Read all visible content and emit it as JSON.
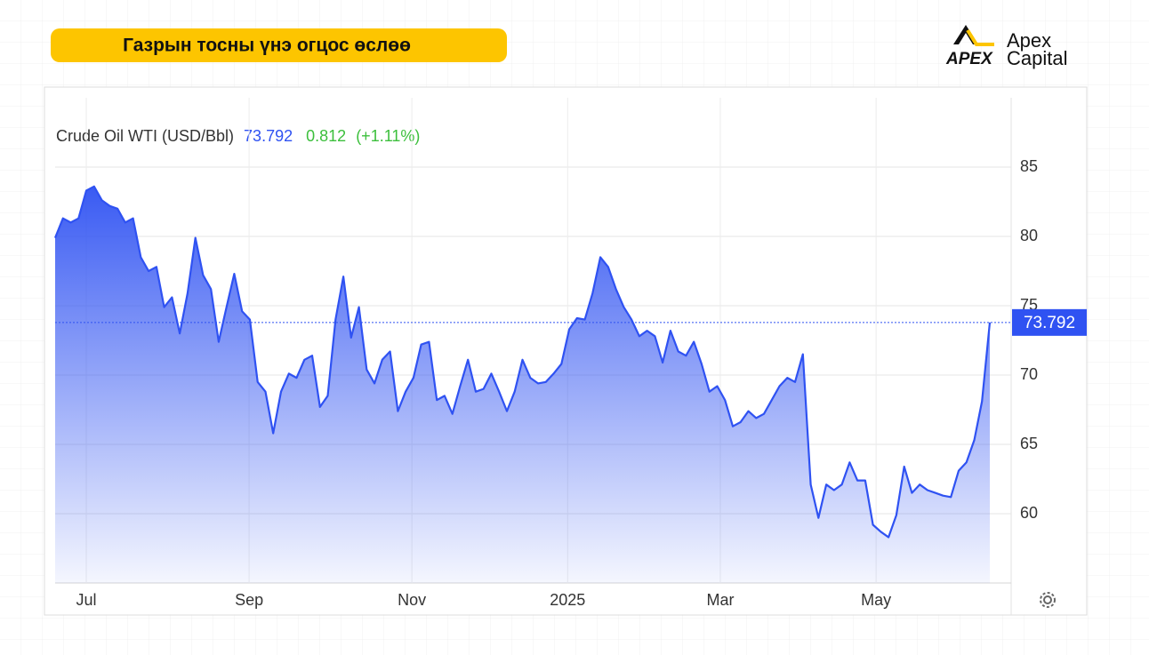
{
  "header": {
    "title": "Газрын тосны үнэ огцос өслөө",
    "logo_mark": "APEX",
    "logo_line1": "Apex",
    "logo_line2": "Capital"
  },
  "chart_data": {
    "type": "area",
    "series_name": "Crude Oil WTI (USD/Bbl)",
    "change": 0.812,
    "change_percent": "(+1.11%)",
    "color": "#2f52f2",
    "change_color": "#3cbf3c",
    "grid": true,
    "values": [
      79.9,
      81.3,
      81.0,
      81.3,
      83.3,
      83.6,
      82.6,
      82.2,
      82.0,
      81.0,
      81.3,
      78.5,
      77.5,
      77.8,
      74.9,
      75.6,
      73.0,
      75.9,
      79.9,
      77.2,
      76.2,
      72.4,
      74.9,
      77.3,
      74.6,
      74.0,
      69.5,
      68.8,
      65.8,
      68.8,
      70.1,
      69.8,
      71.1,
      71.4,
      67.7,
      68.5,
      74.0,
      77.1,
      72.7,
      74.9,
      70.4,
      69.4,
      71.1,
      71.7,
      67.4,
      68.8,
      69.8,
      72.2,
      72.4,
      68.2,
      68.5,
      67.2,
      69.2,
      71.1,
      68.8,
      69.0,
      70.1,
      68.8,
      67.4,
      68.8,
      71.1,
      69.8,
      69.4,
      69.5,
      70.1,
      70.8,
      73.3,
      74.1,
      74.0,
      75.9,
      78.5,
      77.8,
      76.2,
      74.9,
      74.0,
      72.8,
      73.2,
      72.8,
      70.9,
      73.2,
      71.7,
      71.4,
      72.4,
      70.8,
      68.8,
      69.2,
      68.2,
      66.3,
      66.6,
      67.4,
      66.9,
      67.2,
      68.2,
      69.2,
      69.8,
      69.5,
      71.5,
      62.1,
      59.7,
      62.1,
      61.7,
      62.1,
      63.7,
      62.4,
      62.4,
      59.2,
      58.7,
      58.3,
      59.9,
      63.4,
      61.5,
      62.1,
      61.7,
      61.5,
      61.3,
      61.2,
      63.1,
      63.7,
      65.3,
      68.1,
      73.792
    ],
    "xlim": [
      0,
      120
    ],
    "xticks": [
      {
        "value": 4,
        "label": "Jul"
      },
      {
        "value": 24.9,
        "label": "Sep"
      },
      {
        "value": 45.8,
        "label": "Nov"
      },
      {
        "value": 65.8,
        "label": "2025"
      },
      {
        "value": 85.4,
        "label": "Mar"
      },
      {
        "value": 105.4,
        "label": "May"
      }
    ],
    "ylim": [
      55,
      90
    ],
    "yticks": [
      60,
      65,
      70,
      75,
      80,
      85
    ]
  }
}
